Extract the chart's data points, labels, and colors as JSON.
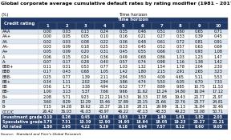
{
  "title": "Global corporate average cumulative default rates by rating modifier (1981 - 2017)",
  "subtitle": "(%)",
  "time_horizon_label": "Time horizon",
  "source": "Source:  Standard and Poor’s Global Research",
  "col_header": [
    "Credit rating",
    "1",
    "2",
    "3",
    "4",
    "5",
    "6",
    "7",
    "8",
    "9",
    "10"
  ],
  "rows": [
    [
      "AAA",
      "0.00",
      "0.03",
      "0.13",
      "0.24",
      "0.35",
      "0.46",
      "0.51",
      "0.60",
      "0.65",
      "0.71"
    ],
    [
      "AA+",
      "0.00",
      "0.05",
      "0.05",
      "0.10",
      "0.16",
      "0.21",
      "0.27",
      "0.33",
      "0.39",
      "0.45"
    ],
    [
      "AA",
      "0.02",
      "0.03",
      "0.08",
      "0.22",
      "0.36",
      "0.48",
      "0.61",
      "0.72",
      "0.81",
      "0.91"
    ],
    [
      "AA-",
      "0.03",
      "0.09",
      "0.18",
      "0.25",
      "0.33",
      "0.45",
      "0.52",
      "0.57",
      "0.63",
      "0.69"
    ],
    [
      "A+",
      "0.05",
      "0.09",
      "0.20",
      "0.31",
      "0.45",
      "0.55",
      "0.66",
      "0.71",
      "0.93",
      "1.08"
    ],
    [
      "A",
      "0.06",
      "0.15",
      "0.24",
      "0.36",
      "0.49",
      "0.68",
      "0.86",
      "1.03",
      "1.23",
      "1.47"
    ],
    [
      "A-",
      "0.07",
      "0.17",
      "0.28",
      "0.40",
      "0.57",
      "0.74",
      "0.98",
      "1.16",
      "1.38",
      "1.42"
    ],
    [
      "BBB+",
      "0.11",
      "0.31",
      "0.53",
      "0.77",
      "1.03",
      "1.32",
      "1.54",
      "1.78",
      "2.04",
      "2.30"
    ],
    [
      "BBB",
      "0.17",
      "0.43",
      "0.68",
      "1.05",
      "1.42",
      "1.80",
      "2.15",
      "2.91",
      "2.65",
      "3.23"
    ],
    [
      "BBB-",
      "0.25",
      "0.77",
      "1.39",
      "2.11",
      "2.84",
      "3.50",
      "4.09",
      "4.65",
      "5.11",
      "5.53"
    ],
    [
      "BB+",
      "0.34",
      "1.11",
      "2.02",
      "2.94",
      "3.86",
      "4.74",
      "5.50",
      "6.05",
      "6.70",
      "7.33"
    ],
    [
      "BB",
      "0.56",
      "1.71",
      "3.38",
      "4.94",
      "6.52",
      "7.77",
      "8.89",
      "9.85",
      "10.75",
      "11.53"
    ],
    [
      "BB-",
      "1.00",
      "3.13",
      "5.37",
      "7.66",
      "9.66",
      "11.62",
      "13.24",
      "14.80",
      "16.04",
      "17.12"
    ],
    [
      "B+",
      "2.08",
      "5.71",
      "9.23",
      "12.21",
      "14.53",
      "16.33",
      "17.98",
      "19.43",
      "20.77",
      "21.97"
    ],
    [
      "B",
      "3.60",
      "8.29",
      "12.29",
      "15.46",
      "17.89",
      "20.15",
      "21.66",
      "22.76",
      "23.77",
      "24.81"
    ],
    [
      "B-",
      "7.15",
      "14.28",
      "19.62",
      "23.37",
      "26.18",
      "28.31",
      "29.99",
      "31.13",
      "31.84",
      "32.46"
    ],
    [
      "CCC/C",
      "26.42",
      "36.03",
      "41.03",
      "43.97",
      "46.22",
      "47.13",
      "48.33",
      "49.23",
      "50.08",
      "50.71"
    ],
    [
      "Investment grade",
      "0.10",
      "0.26",
      "0.45",
      "0.68",
      "0.93",
      "1.17",
      "1.40",
      "1.61",
      "1.82",
      "2.03"
    ],
    [
      "Speculative grade",
      "3.75",
      "7.31",
      "10.39",
      "12.90",
      "14.95",
      "16.64",
      "18.05",
      "19.23",
      "20.27",
      "21.21"
    ],
    [
      "All rated",
      "1.50",
      "2.95",
      "4.22",
      "5.29",
      "6.18",
      "6.94",
      "7.57",
      "8.12",
      "8.60",
      "9.05"
    ]
  ],
  "header_bg": "#1f3864",
  "header_fg": "#ffffff",
  "row_colors": {
    "AAA": "#dce6f1",
    "AA+": "#ffffff",
    "AA": "#dce6f1",
    "AA-": "#ffffff",
    "A+": "#dce6f1",
    "A": "#ffffff",
    "A-": "#dce6f1",
    "BBB+": "#ffffff",
    "BBB": "#dce6f1",
    "BBB-": "#ffffff",
    "BB+": "#dce6f1",
    "BB": "#ffffff",
    "BB-": "#dce6f1",
    "B+": "#ffffff",
    "B": "#dce6f1",
    "B-": "#ffffff",
    "CCC/C": "#dce6f1",
    "Investment grade": "#1f3864",
    "Speculative grade": "#1f3864",
    "All rated": "#1f3864"
  },
  "row_fg": {
    "Investment grade": "#ffffff",
    "Speculative grade": "#ffffff",
    "All rated": "#ffffff"
  },
  "bold_rows": [
    "Investment grade",
    "Speculative grade",
    "All rated"
  ],
  "title_fontsize": 4.5,
  "header_fontsize": 3.8,
  "cell_fontsize": 3.5,
  "source_fontsize": 3.2,
  "fig_w": 2.88,
  "fig_h": 1.75,
  "dpi": 100
}
